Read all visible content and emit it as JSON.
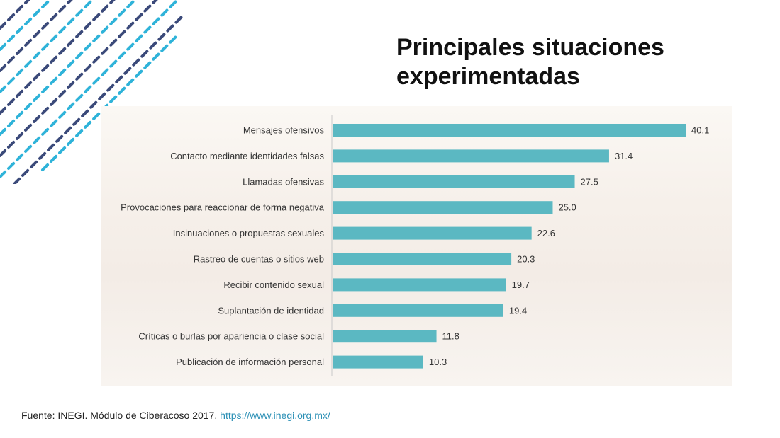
{
  "slide": {
    "title_line1": "Principales situaciones",
    "title_line2": "experimentadas",
    "footer_text": "Fuente: INEGI. Módulo de Ciberacoso 2017.",
    "footer_link": "https://www.inegi.org.mx/"
  },
  "colors": {
    "bar": "#5bb8c2",
    "deco_dark": "#3b4a7a",
    "deco_light": "#2fb3d9"
  },
  "chart_data": {
    "type": "bar",
    "orientation": "horizontal",
    "categories": [
      "Mensajes ofensivos",
      "Contacto mediante identidades falsas",
      "Llamadas ofensivas",
      "Provocaciones para reaccionar de forma negativa",
      "Insinuaciones o propuestas sexuales",
      "Rastreo de cuentas o sitios web",
      "Recibir contenido sexual",
      "Suplantación de identidad",
      "Críticas o burlas por apariencia o clase social",
      "Publicación de información personal"
    ],
    "values": [
      40.1,
      31.4,
      27.5,
      25.0,
      22.6,
      20.3,
      19.7,
      19.4,
      11.8,
      10.3
    ],
    "value_labels": [
      "40.1",
      "31.4",
      "27.5",
      "25.0",
      "22.6",
      "20.3",
      "19.7",
      "19.4",
      "11.8",
      "10.3"
    ],
    "xlim": [
      0,
      40.1
    ],
    "grid": false,
    "legend": "none"
  }
}
